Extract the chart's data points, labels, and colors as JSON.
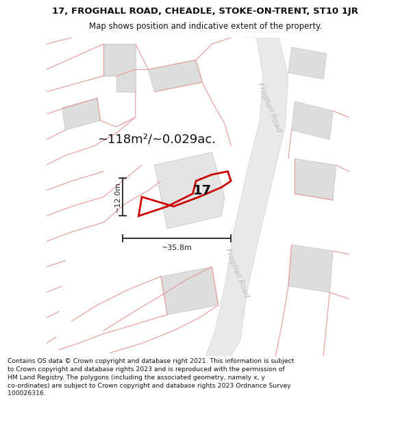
{
  "title": "17, FROGHALL ROAD, CHEADLE, STOKE-ON-TRENT, ST10 1JR",
  "subtitle": "Map shows position and indicative extent of the property.",
  "footer": "Contains OS data © Crown copyright and database right 2021. This information is subject\nto Crown copyright and database rights 2023 and is reproduced with the permission of\nHM Land Registry. The polygons (including the associated geometry, namely x, y\nco-ordinates) are subject to Crown copyright and database rights 2023 Ordnance Survey\n100026316.",
  "area_label": "~118m²/~0.029ac.",
  "width_label": "~35.8m",
  "height_label": "~12.0m",
  "property_number": "17",
  "bg_color": "#ffffff",
  "cadastral_color": "#e8a0a0",
  "highlight_color": "#cc0000",
  "road_label_color": "#bbbbbb",
  "dim_color": "#222222",
  "building_fill": "#dddddd",
  "building_edge": "#cccccc",
  "road_fill": "#e8e8e8",
  "map_bg": "#f7f7f7"
}
